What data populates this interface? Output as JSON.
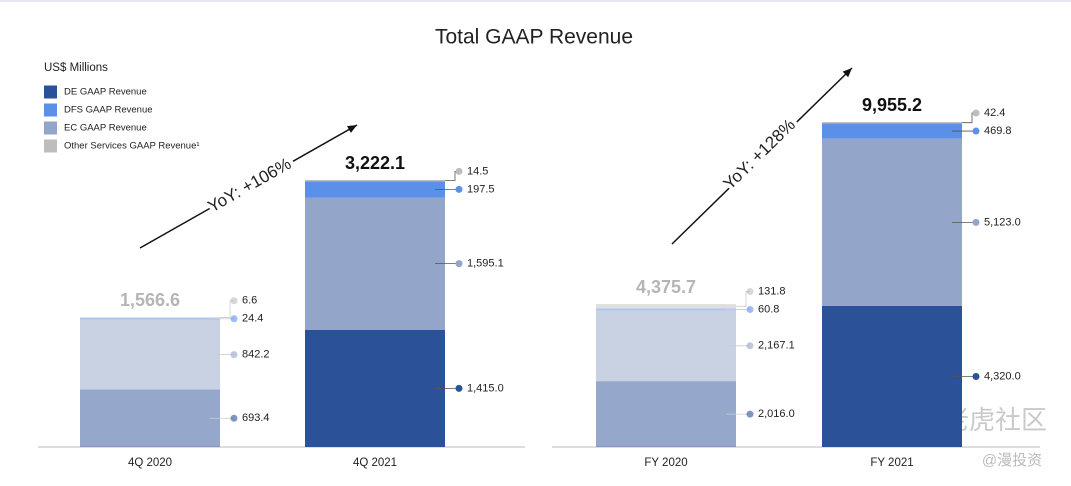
{
  "title": "Total GAAP Revenue",
  "unit": "US$ Millions",
  "watermark": [
    "老虎社区",
    "@漫投资"
  ],
  "chart_data": [
    {
      "type": "bar",
      "stacked": true,
      "categories": [
        "4Q 2020",
        "4Q 2021"
      ],
      "annotation": "YoY: +106%",
      "totals": [
        1566.6,
        3222.1
      ],
      "total_labels": [
        "1,566.6",
        "3,222.1"
      ],
      "series": [
        {
          "name": "DE GAAP Revenue",
          "color": "#2b5299",
          "values": [
            693.4,
            1415.0
          ],
          "value_labels": [
            "693.4",
            "1,415.0"
          ]
        },
        {
          "name": "EC GAAP Revenue",
          "color": "#93a5c8",
          "values": [
            842.2,
            1595.1
          ],
          "value_labels": [
            "842.2",
            "1,595.1"
          ]
        },
        {
          "name": "DFS GAAP Revenue",
          "color": "#5b8fe8",
          "values": [
            24.4,
            197.5
          ],
          "value_labels": [
            "24.4",
            "197.5"
          ]
        },
        {
          "name": "Other Services GAAP Revenue¹",
          "color": "#bdbdbd",
          "values": [
            6.6,
            14.5
          ],
          "value_labels": [
            "6.6",
            "14.5"
          ]
        }
      ]
    },
    {
      "type": "bar",
      "stacked": true,
      "categories": [
        "FY 2020",
        "FY 2021"
      ],
      "annotation": "YoY: +128%",
      "totals": [
        4375.7,
        9955.2
      ],
      "total_labels": [
        "4,375.7",
        "9,955.2"
      ],
      "series": [
        {
          "color": "#2b5299",
          "values": [
            2016.0,
            4320.0
          ],
          "value_labels": [
            "2,016.0",
            "4,320.0"
          ]
        },
        {
          "color": "#93a5c8",
          "values": [
            2167.1,
            5123.0
          ],
          "value_labels": [
            "2,167.1",
            "5,123.0"
          ]
        },
        {
          "color": "#5b8fe8",
          "values": [
            60.8,
            469.8
          ],
          "value_labels": [
            "60.8",
            "469.8"
          ]
        },
        {
          "color": "#bdbdbd",
          "values": [
            131.8,
            42.4
          ],
          "value_labels": [
            "131.8",
            "42.4"
          ]
        }
      ]
    }
  ]
}
